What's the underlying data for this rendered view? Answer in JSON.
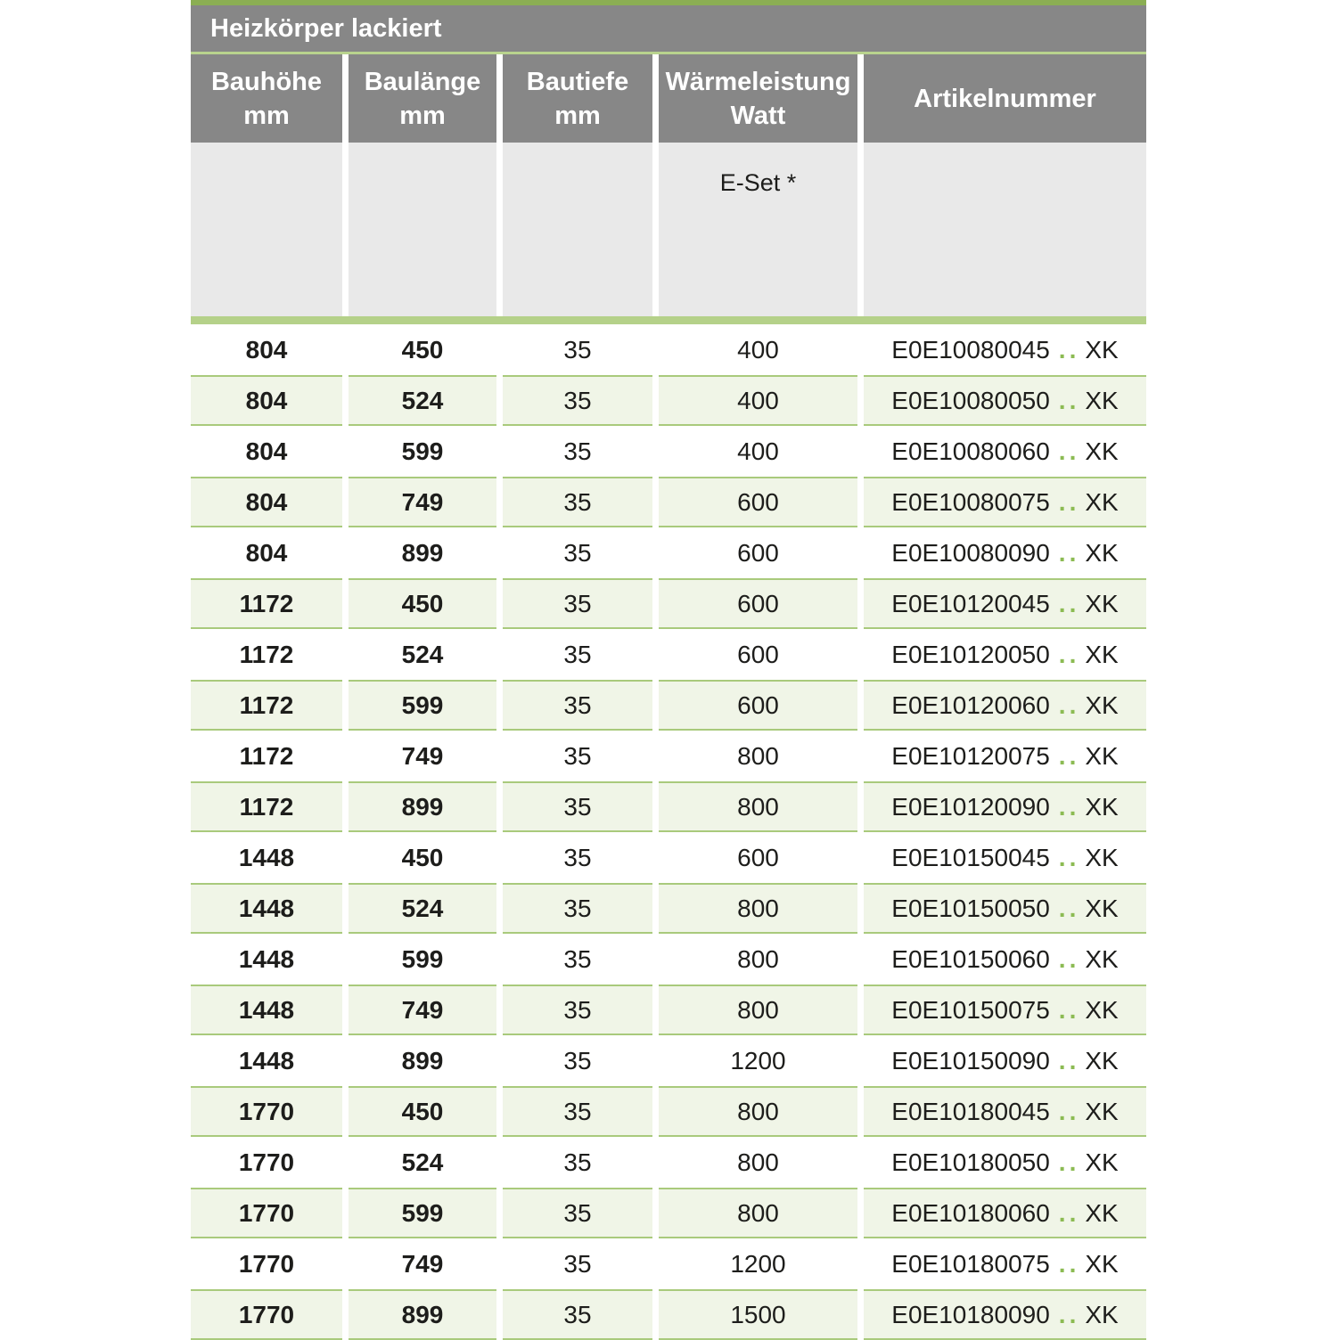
{
  "colors": {
    "top_strip_green": "#8bae53",
    "header_gray": "#878787",
    "title_underline_green": "#b9d38e",
    "subheader_gray": "#e9e9e9",
    "separator_bar_green": "#b5d189",
    "row_shaded_bg": "#f0f5e7",
    "row_shaded_border": "#a9ca7c",
    "article_dots_green": "#8cbb53",
    "text_dark": "#1d1d1b",
    "header_text": "#ffffff"
  },
  "table": {
    "title": "Heizkörper lackiert",
    "columns": [
      {
        "key": "bauhoehe",
        "line1": "Bauhöhe",
        "line2": "mm"
      },
      {
        "key": "baulaenge",
        "line1": "Baulänge",
        "line2": "mm"
      },
      {
        "key": "bautiefe",
        "line1": "Bautiefe",
        "line2": "mm"
      },
      {
        "key": "waermeleistung",
        "line1": "Wärmeleistung",
        "line2": "Watt"
      },
      {
        "key": "artikelnummer",
        "line1": "Artikelnummer",
        "line2": ""
      }
    ],
    "subheader": {
      "e_set_label": "E-Set *",
      "e_set_column_index": 3
    },
    "article_dots": "..",
    "rows": [
      {
        "bauhoehe": "804",
        "baulaenge": "450",
        "bautiefe": "35",
        "watt": "400",
        "artikel": "E0E10080045",
        "artikel_suffix": "XK"
      },
      {
        "bauhoehe": "804",
        "baulaenge": "524",
        "bautiefe": "35",
        "watt": "400",
        "artikel": "E0E10080050",
        "artikel_suffix": "XK"
      },
      {
        "bauhoehe": "804",
        "baulaenge": "599",
        "bautiefe": "35",
        "watt": "400",
        "artikel": "E0E10080060",
        "artikel_suffix": "XK"
      },
      {
        "bauhoehe": "804",
        "baulaenge": "749",
        "bautiefe": "35",
        "watt": "600",
        "artikel": "E0E10080075",
        "artikel_suffix": "XK"
      },
      {
        "bauhoehe": "804",
        "baulaenge": "899",
        "bautiefe": "35",
        "watt": "600",
        "artikel": "E0E10080090",
        "artikel_suffix": "XK"
      },
      {
        "bauhoehe": "1172",
        "baulaenge": "450",
        "bautiefe": "35",
        "watt": "600",
        "artikel": "E0E10120045",
        "artikel_suffix": "XK"
      },
      {
        "bauhoehe": "1172",
        "baulaenge": "524",
        "bautiefe": "35",
        "watt": "600",
        "artikel": "E0E10120050",
        "artikel_suffix": "XK"
      },
      {
        "bauhoehe": "1172",
        "baulaenge": "599",
        "bautiefe": "35",
        "watt": "600",
        "artikel": "E0E10120060",
        "artikel_suffix": "XK"
      },
      {
        "bauhoehe": "1172",
        "baulaenge": "749",
        "bautiefe": "35",
        "watt": "800",
        "artikel": "E0E10120075",
        "artikel_suffix": "XK"
      },
      {
        "bauhoehe": "1172",
        "baulaenge": "899",
        "bautiefe": "35",
        "watt": "800",
        "artikel": "E0E10120090",
        "artikel_suffix": "XK"
      },
      {
        "bauhoehe": "1448",
        "baulaenge": "450",
        "bautiefe": "35",
        "watt": "600",
        "artikel": "E0E10150045",
        "artikel_suffix": "XK"
      },
      {
        "bauhoehe": "1448",
        "baulaenge": "524",
        "bautiefe": "35",
        "watt": "800",
        "artikel": "E0E10150050",
        "artikel_suffix": "XK"
      },
      {
        "bauhoehe": "1448",
        "baulaenge": "599",
        "bautiefe": "35",
        "watt": "800",
        "artikel": "E0E10150060",
        "artikel_suffix": "XK"
      },
      {
        "bauhoehe": "1448",
        "baulaenge": "749",
        "bautiefe": "35",
        "watt": "800",
        "artikel": "E0E10150075",
        "artikel_suffix": "XK"
      },
      {
        "bauhoehe": "1448",
        "baulaenge": "899",
        "bautiefe": "35",
        "watt": "1200",
        "artikel": "E0E10150090",
        "artikel_suffix": "XK"
      },
      {
        "bauhoehe": "1770",
        "baulaenge": "450",
        "bautiefe": "35",
        "watt": "800",
        "artikel": "E0E10180045",
        "artikel_suffix": "XK"
      },
      {
        "bauhoehe": "1770",
        "baulaenge": "524",
        "bautiefe": "35",
        "watt": "800",
        "artikel": "E0E10180050",
        "artikel_suffix": "XK"
      },
      {
        "bauhoehe": "1770",
        "baulaenge": "599",
        "bautiefe": "35",
        "watt": "800",
        "artikel": "E0E10180060",
        "artikel_suffix": "XK"
      },
      {
        "bauhoehe": "1770",
        "baulaenge": "749",
        "bautiefe": "35",
        "watt": "1200",
        "artikel": "E0E10180075",
        "artikel_suffix": "XK"
      },
      {
        "bauhoehe": "1770",
        "baulaenge": "899",
        "bautiefe": "35",
        "watt": "1500",
        "artikel": "E0E10180090",
        "artikel_suffix": "XK"
      }
    ]
  }
}
